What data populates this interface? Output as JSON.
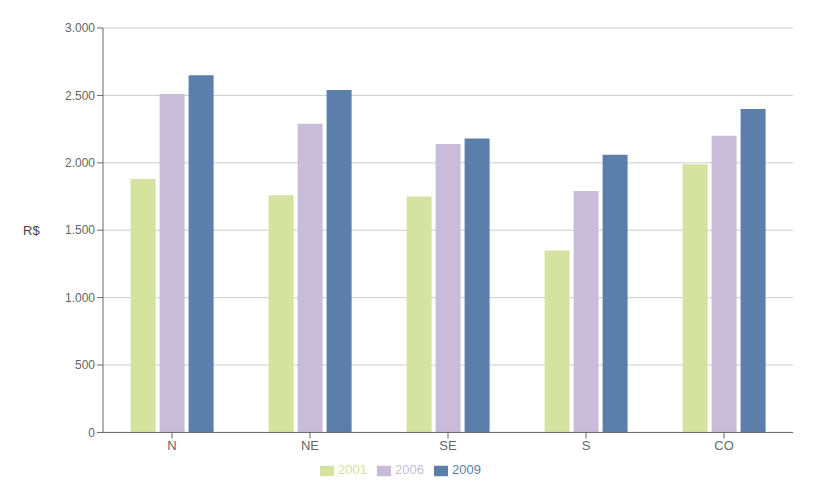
{
  "chart_data": {
    "type": "bar",
    "categories": [
      "N",
      "NE",
      "SE",
      "S",
      "CO"
    ],
    "series": [
      {
        "name": "2001",
        "color": "#d4e4a0",
        "values": [
          1880,
          1760,
          1750,
          1350,
          1990
        ]
      },
      {
        "name": "2006",
        "color": "#c8bcd8",
        "values": [
          2510,
          2290,
          2140,
          1790,
          2200
        ]
      },
      {
        "name": "2009",
        "color": "#5b7faa",
        "values": [
          2650,
          2540,
          2180,
          2060,
          2400
        ]
      }
    ],
    "ylabel": "R$",
    "ylim": [
      0,
      3000
    ],
    "yticks": [
      0,
      500,
      {
        "value": 1000,
        "label": "1.000"
      },
      {
        "value": 1500,
        "label": "1.500"
      },
      {
        "value": 2000,
        "label": "2.000"
      },
      {
        "value": 2500,
        "label": "2.500"
      },
      {
        "value": 3000,
        "label": "3.000"
      }
    ],
    "grid": true,
    "legend": "bottom"
  }
}
